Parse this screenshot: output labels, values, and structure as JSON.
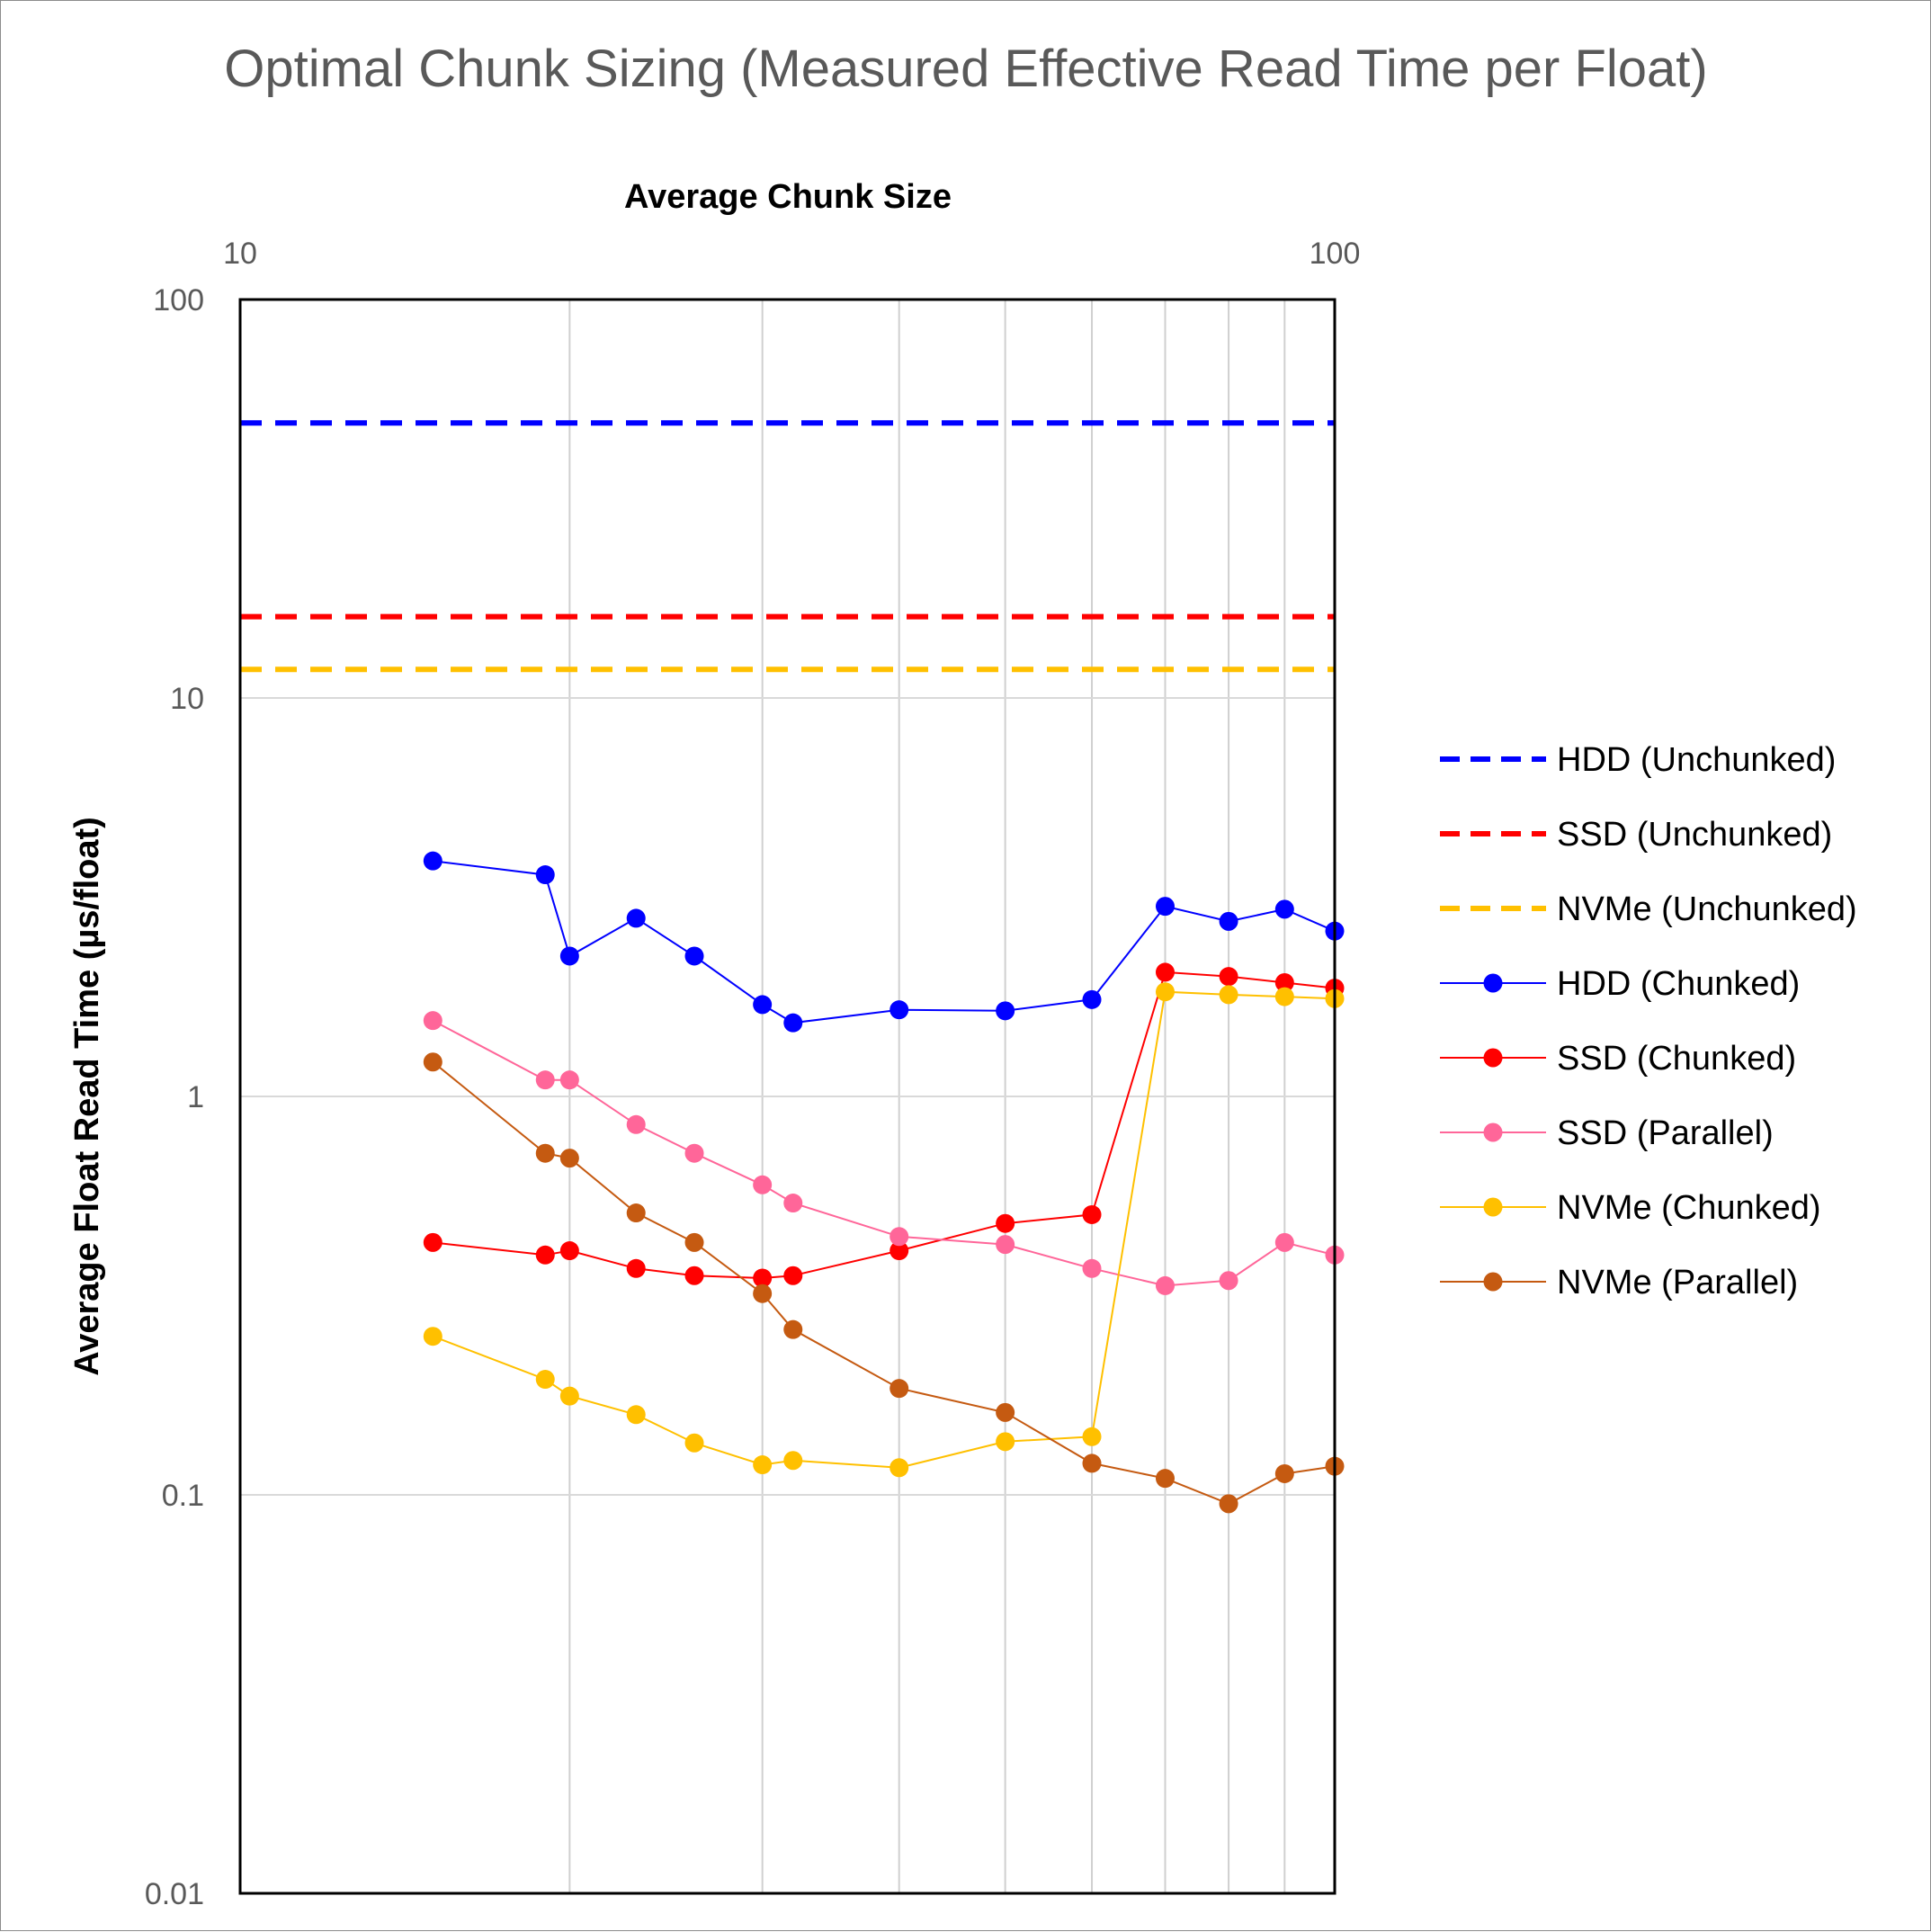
{
  "chart_data": {
    "type": "line",
    "title": "Optimal Chunk Sizing (Measured Effective Read Time per Float)",
    "xlabel": "Average Chunk Size",
    "ylabel": "Average Float Read Time (µs/float)",
    "x_scale": "log",
    "y_scale": "log",
    "xlim": [
      10,
      100
    ],
    "ylim": [
      0.01,
      100
    ],
    "x_axis_position": "top",
    "x_ticks": [
      "10",
      "100"
    ],
    "y_ticks": [
      "100",
      "10",
      "1",
      "0.1",
      "0.01"
    ],
    "x_gridlines": [
      20,
      30,
      40,
      50,
      60,
      70,
      80,
      90
    ],
    "y_gridlines": [
      10,
      1,
      0.1
    ],
    "legend_position": "right",
    "grid": true,
    "series": [
      {
        "name": "HDD (Unchunked)",
        "color": "#0000ff",
        "style": "dashed",
        "x": [
          10,
          100
        ],
        "y": [
          49,
          49
        ]
      },
      {
        "name": "SSD (Unchunked)",
        "color": "#ff0000",
        "style": "dashed",
        "x": [
          10,
          100
        ],
        "y": [
          16,
          16
        ]
      },
      {
        "name": "NVMe (Unchunked)",
        "color": "#ffc000",
        "style": "dashed",
        "x": [
          10,
          100
        ],
        "y": [
          11.8,
          11.8
        ]
      },
      {
        "name": "HDD (Chunked)",
        "color": "#0000ff",
        "style": "markers",
        "x": [
          15,
          19,
          20,
          23,
          26,
          30,
          32,
          40,
          50,
          60,
          70,
          80,
          90,
          100
        ],
        "y": [
          3.9,
          3.6,
          2.25,
          2.8,
          2.25,
          1.7,
          1.53,
          1.65,
          1.64,
          1.75,
          3.0,
          2.75,
          2.95,
          2.6
        ]
      },
      {
        "name": "SSD (Chunked)",
        "color": "#ff0000",
        "style": "markers",
        "x": [
          15,
          19,
          20,
          23,
          26,
          30,
          32,
          40,
          50,
          60,
          70,
          80,
          90,
          100
        ],
        "y": [
          0.43,
          0.4,
          0.41,
          0.37,
          0.355,
          0.35,
          0.355,
          0.41,
          0.48,
          0.505,
          2.05,
          2.0,
          1.93,
          1.87
        ]
      },
      {
        "name": "SSD (Parallel)",
        "color": "#ff6699",
        "style": "markers",
        "x": [
          15,
          19,
          20,
          23,
          26,
          30,
          32,
          40,
          50,
          60,
          70,
          80,
          90,
          100
        ],
        "y": [
          1.55,
          1.1,
          1.1,
          0.85,
          0.72,
          0.6,
          0.54,
          0.445,
          0.425,
          0.37,
          0.335,
          0.345,
          0.43,
          0.4
        ]
      },
      {
        "name": "NVMe (Chunked)",
        "color": "#ffc000",
        "style": "markers",
        "x": [
          15,
          19,
          20,
          23,
          26,
          30,
          32,
          40,
          50,
          60,
          70,
          80,
          90,
          100
        ],
        "y": [
          0.25,
          0.195,
          0.177,
          0.159,
          0.135,
          0.119,
          0.122,
          0.117,
          0.136,
          0.14,
          1.83,
          1.8,
          1.78,
          1.76
        ]
      },
      {
        "name": "NVMe (Parallel)",
        "color": "#c55a11",
        "style": "markers",
        "x": [
          15,
          19,
          20,
          23,
          26,
          30,
          32,
          40,
          50,
          60,
          70,
          80,
          90,
          100
        ],
        "y": [
          1.22,
          0.72,
          0.7,
          0.51,
          0.43,
          0.32,
          0.26,
          0.185,
          0.161,
          0.12,
          0.11,
          0.095,
          0.113,
          0.118
        ]
      }
    ]
  }
}
